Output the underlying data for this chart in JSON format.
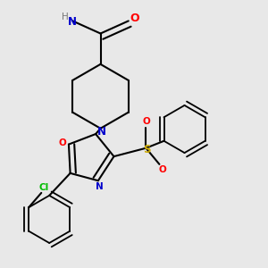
{
  "bg_color": "#e8e8e8",
  "colors": {
    "C": "#000000",
    "N": "#0000cc",
    "O": "#ff0000",
    "S": "#ccaa00",
    "Cl": "#00bb00",
    "H": "#777777"
  },
  "lw": 1.5,
  "lw_thin": 1.3
}
